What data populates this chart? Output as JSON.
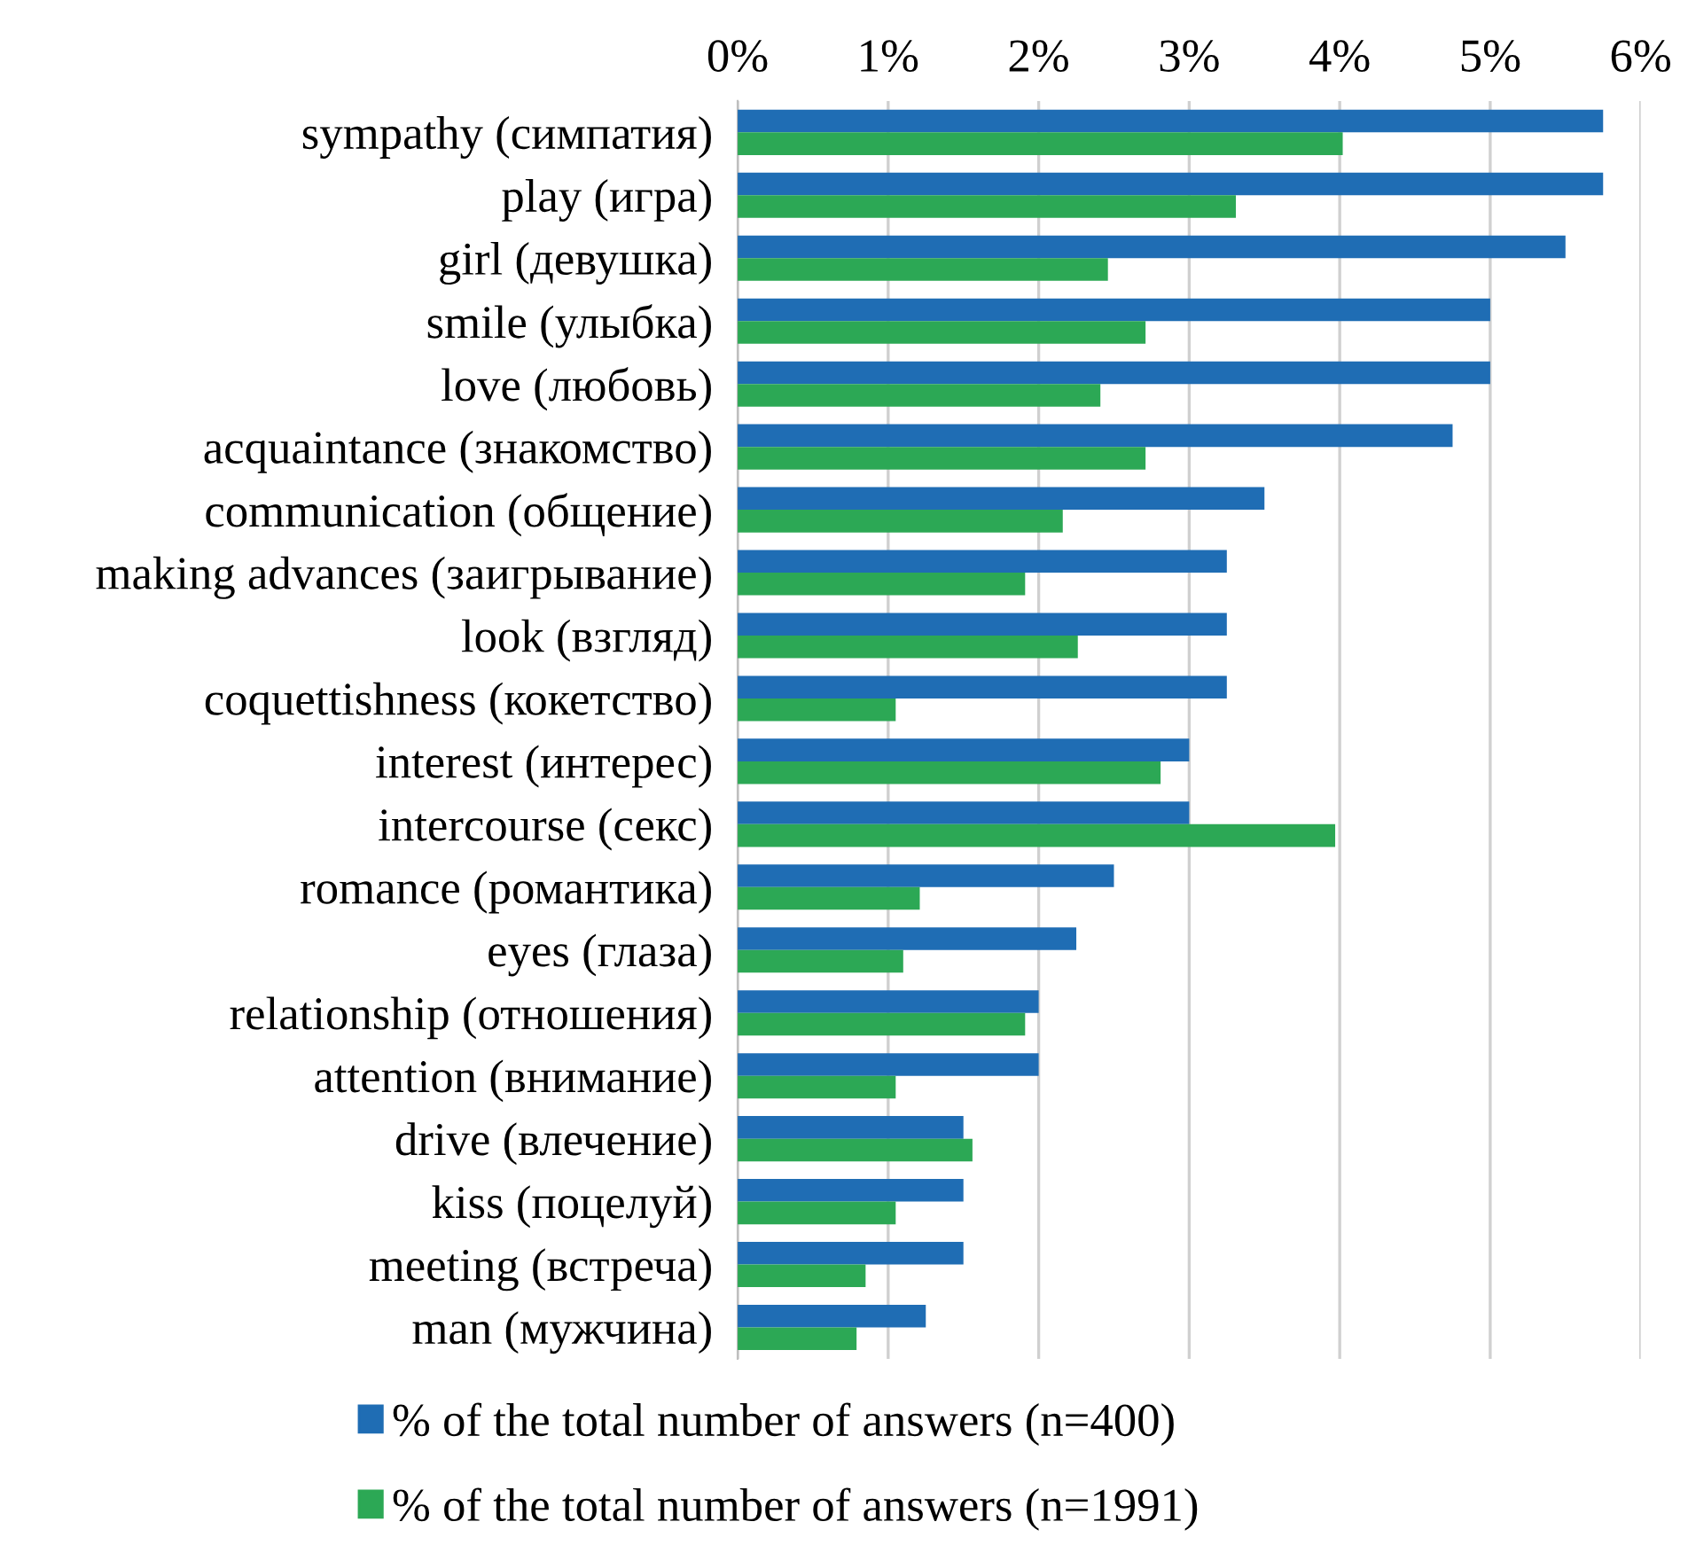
{
  "chart_data": {
    "type": "bar",
    "orientation": "horizontal",
    "categories": [
      "sympathy (симпатия)",
      "play (игра)",
      "girl (девушка)",
      "smile (улыбка)",
      "love (любовь)",
      "acquaintance (знакомство)",
      "communication (общение)",
      "making advances (заигрывание)",
      "look (взгляд)",
      "coquettishness (кокетство)",
      "interest (интерес)",
      "intercourse (секс)",
      "romance (романтика)",
      "eyes (глаза)",
      "relationship (отношения)",
      "attention (внимание)",
      "drive (влечение)",
      "kiss (поцелуй)",
      "meeting (встреча)",
      "man (мужчина)"
    ],
    "series": [
      {
        "name": "% of the total number of answers (n=400)",
        "color": "#1f6db4",
        "values": [
          5.75,
          5.75,
          5.5,
          5.0,
          5.0,
          4.75,
          3.5,
          3.25,
          3.25,
          3.25,
          3.0,
          3.0,
          2.5,
          2.25,
          2.0,
          2.0,
          1.5,
          1.5,
          1.5,
          1.25
        ]
      },
      {
        "name": "% of the total number of answers (n=1991)",
        "color": "#2ca855",
        "values": [
          4.02,
          3.31,
          2.46,
          2.71,
          2.41,
          2.71,
          2.16,
          1.91,
          2.26,
          1.05,
          2.81,
          3.97,
          1.21,
          1.1,
          1.91,
          1.05,
          1.56,
          1.05,
          0.85,
          0.79
        ]
      }
    ],
    "xlim": [
      0,
      6
    ],
    "xticks": [
      {
        "value": 0,
        "label": "0%"
      },
      {
        "value": 1,
        "label": "1%"
      },
      {
        "value": 2,
        "label": "2%"
      },
      {
        "value": 3,
        "label": "3%"
      },
      {
        "value": 4,
        "label": "4%"
      },
      {
        "value": 5,
        "label": "5%"
      },
      {
        "value": 6,
        "label": "6%"
      }
    ],
    "grid": "x",
    "legend": "bottom"
  }
}
